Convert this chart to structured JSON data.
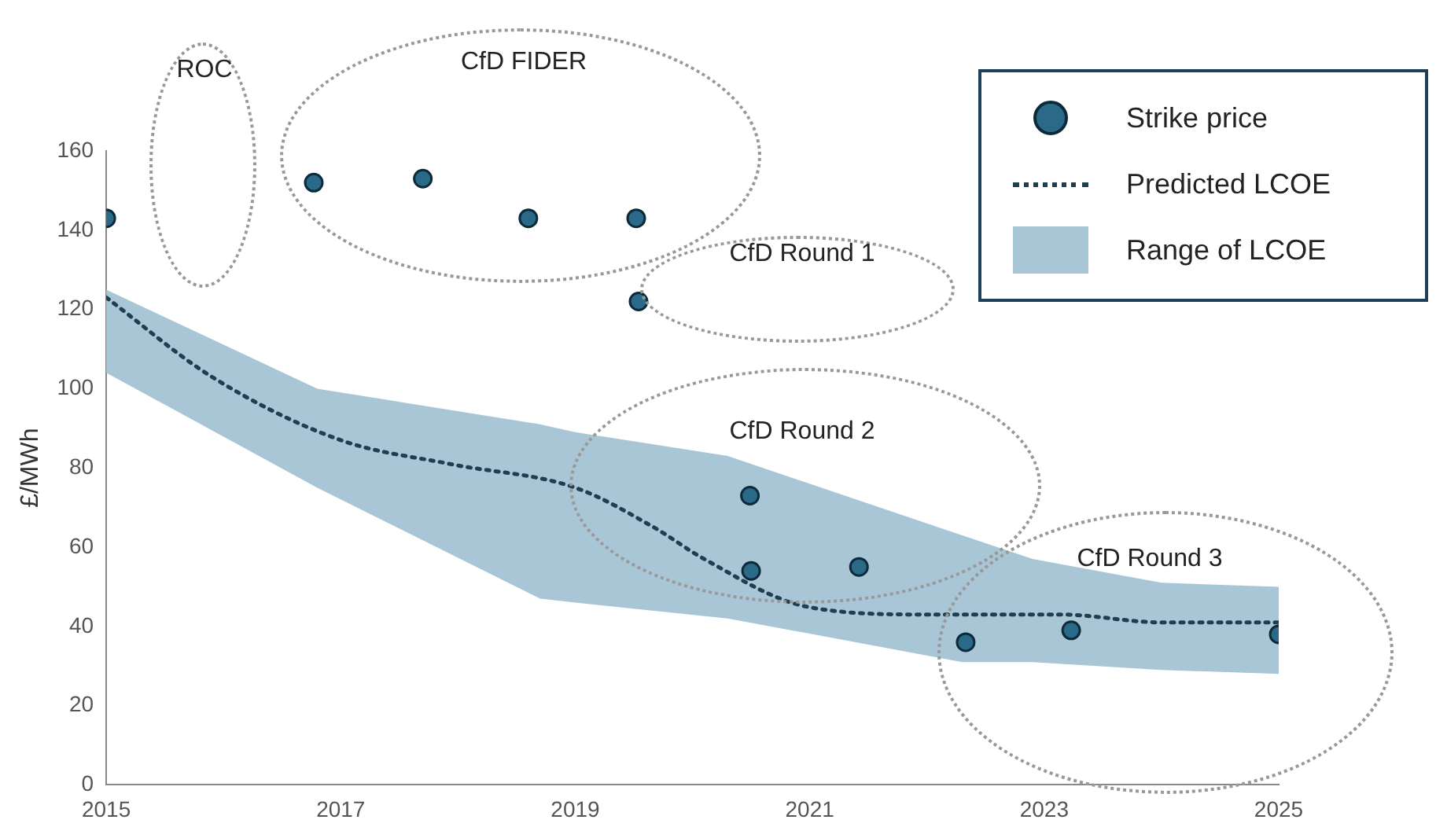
{
  "chart_data": {
    "type": "scatter",
    "ylabel": "£/MWh",
    "xlim": [
      2015,
      2025
    ],
    "xticks": [
      2015,
      2017,
      2019,
      2021,
      2023,
      2025
    ],
    "ylim": [
      0,
      160
    ],
    "yticks": [
      0,
      20,
      40,
      60,
      80,
      100,
      120,
      140,
      160
    ],
    "grid": false,
    "legend": "top right",
    "annotations": [
      "ROC",
      "CfD FIDER",
      "CfD Round 1",
      "CfD Round 2",
      "CfD Round 3"
    ],
    "series": [
      {
        "name": "Strike price",
        "marker": "circle",
        "color": "#2a6a88",
        "x": [
          2015,
          2016.77,
          2017.7,
          2018.6,
          2019.52,
          2019.54,
          2020.49,
          2020.5,
          2021.42,
          2022.33,
          2023.23,
          2025
        ],
        "values": [
          143,
          152,
          153,
          143,
          143,
          122,
          73,
          54,
          55,
          36,
          39,
          38
        ]
      },
      {
        "name": "Predicted LCOE",
        "type": "line",
        "line_style": "dotted",
        "marker": "none",
        "color": "#1e3f4f",
        "x": [
          2015,
          2015.9,
          2017,
          2017.93,
          2019,
          2019.67,
          2020.1,
          2020.97,
          2021.99,
          2023.14,
          2024,
          2025
        ],
        "values": [
          123,
          103,
          87,
          81,
          75,
          65,
          57,
          45,
          43,
          43,
          41,
          41
        ]
      },
      {
        "name": "Range of LCOE",
        "type": "area",
        "color": "#a9c6d6",
        "x": [
          2015,
          2016.8,
          2018.7,
          2019,
          2020.3,
          2022.3,
          2022.9,
          2024,
          2025
        ],
        "values": [
          null,
          null,
          null,
          null,
          null,
          null,
          null,
          null,
          null
        ],
        "lower": [
          104,
          75,
          47,
          46,
          42,
          31,
          31,
          29,
          28
        ],
        "upper": [
          125,
          100,
          91,
          89,
          83,
          63,
          57,
          51,
          50
        ]
      }
    ]
  }
}
